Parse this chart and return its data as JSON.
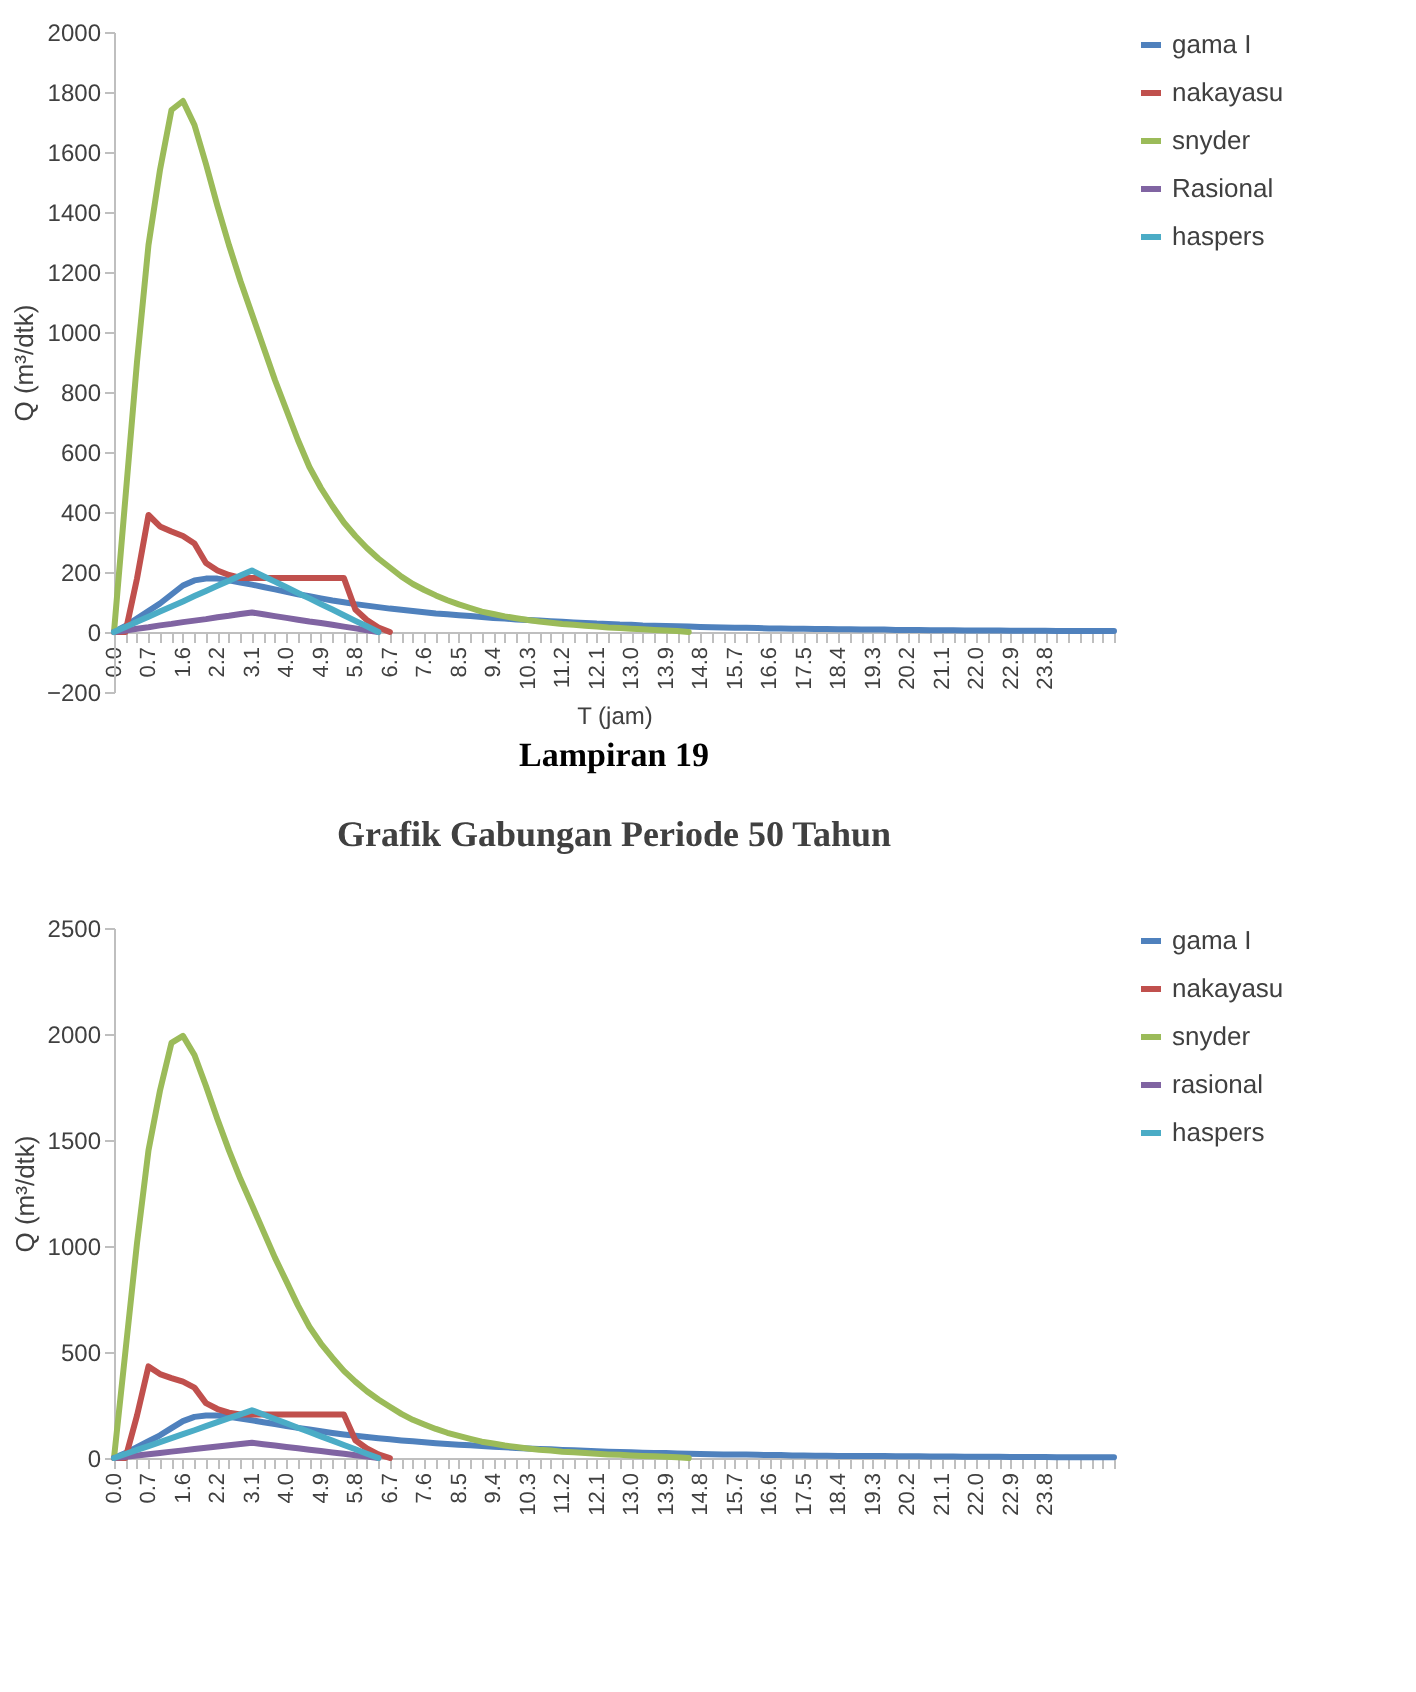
{
  "chart_data": [
    {
      "type": "line",
      "xlabel": "T (jam)",
      "ylabel": "Q (m³/dtk)",
      "legend": "right",
      "grid": false,
      "categories": [
        "0.0",
        null,
        null,
        "0.7",
        null,
        null,
        "1.6",
        null,
        null,
        "2.2",
        null,
        null,
        "3.1",
        null,
        null,
        "4.0",
        null,
        null,
        "4.9",
        null,
        null,
        "5.8",
        null,
        null,
        "6.7",
        null,
        null,
        "7.6",
        null,
        null,
        "8.5",
        null,
        null,
        "9.4",
        null,
        null,
        "10.3",
        null,
        null,
        "11.2",
        null,
        null,
        "12.1",
        null,
        null,
        "13.0",
        null,
        null,
        "13.9",
        null,
        null,
        "14.8",
        null,
        null,
        "15.7",
        null,
        null,
        "16.6",
        null,
        null,
        "17.5",
        null,
        null,
        "18.4",
        null,
        null,
        "19.3",
        null,
        null,
        "20.2",
        null,
        null,
        "21.1",
        null,
        null,
        "22.0",
        null,
        null,
        "22.9",
        null,
        null,
        "23.8",
        null,
        null,
        null,
        null,
        null,
        null
      ],
      "ylim": [
        -200,
        2000
      ],
      "yticks": [
        -200,
        0,
        200,
        400,
        600,
        800,
        1000,
        1200,
        1400,
        1600,
        1800,
        2000
      ],
      "series": [
        {
          "name": "gama I",
          "color": "#4f81bd",
          "values": [
            0,
            20,
            45,
            70,
            95,
            125,
            155,
            172,
            178,
            178,
            172,
            165,
            158,
            150,
            142,
            134,
            126,
            119,
            112,
            105,
            99,
            93,
            88,
            83,
            78,
            74,
            70,
            66,
            62,
            59,
            56,
            53,
            50,
            47,
            45,
            42,
            40,
            38,
            36,
            34,
            32,
            30,
            28,
            27,
            25,
            24,
            22,
            21,
            20,
            19,
            18,
            17,
            16,
            15,
            14,
            14,
            13,
            12,
            12,
            11,
            11,
            10,
            10,
            9,
            9,
            8,
            8,
            8,
            7,
            7,
            7,
            6,
            6,
            6,
            5,
            5,
            5,
            5,
            4,
            4,
            4,
            4,
            3,
            3,
            3,
            3,
            3,
            3
          ]
        },
        {
          "name": "nakayasu",
          "color": "#c0504d",
          "values": [
            0,
            0,
            178,
            390,
            352,
            335,
            320,
            295,
            230,
            205,
            190,
            180,
            180,
            180,
            180,
            180,
            180,
            180,
            180,
            180,
            180,
            75,
            40,
            15,
            0,
            null,
            null,
            null,
            null,
            null,
            null,
            null,
            null,
            null,
            null,
            null,
            null,
            null,
            null,
            null,
            null,
            null,
            null,
            null,
            null,
            null,
            null,
            null,
            null,
            null,
            null,
            null,
            null,
            null,
            null,
            null,
            null,
            null,
            null,
            null,
            null,
            null,
            null,
            null,
            null,
            null,
            null,
            null,
            null,
            null,
            null,
            null,
            null,
            null,
            null,
            null,
            null,
            null,
            null,
            null,
            null,
            null,
            null,
            null,
            null,
            null,
            null,
            null
          ]
        },
        {
          "name": "snyder",
          "color": "#9bbb59",
          "values": [
            0,
            450,
            900,
            1290,
            1540,
            1740,
            1770,
            1690,
            1560,
            1420,
            1290,
            1170,
            1060,
            950,
            840,
            740,
            640,
            550,
            480,
            420,
            365,
            320,
            280,
            245,
            215,
            185,
            160,
            140,
            122,
            106,
            92,
            80,
            68,
            60,
            52,
            46,
            40,
            35,
            31,
            27,
            24,
            21,
            18,
            15,
            13,
            11,
            9,
            7,
            5,
            3,
            0,
            null,
            null,
            null,
            null,
            null,
            null,
            null,
            null,
            null,
            null,
            null,
            null,
            null,
            null,
            null,
            null,
            null,
            null,
            null,
            null,
            null,
            null,
            null,
            null,
            null,
            null,
            null,
            null,
            null,
            null,
            null,
            null,
            null,
            null,
            null,
            null,
            null
          ]
        },
        {
          "name": "Rasional",
          "color": "#8064a2",
          "values": [
            0,
            5,
            11,
            16,
            22,
            27,
            33,
            38,
            43,
            49,
            54,
            60,
            65,
            59,
            53,
            47,
            41,
            35,
            30,
            24,
            18,
            12,
            6,
            0,
            null,
            null,
            null,
            null,
            null,
            null,
            null,
            null,
            null,
            null,
            null,
            null,
            null,
            null,
            null,
            null,
            null,
            null,
            null,
            null,
            null,
            null,
            null,
            null,
            null,
            null,
            null,
            null,
            null,
            null,
            null,
            null,
            null,
            null,
            null,
            null,
            null,
            null,
            null,
            null,
            null,
            null,
            null,
            null,
            null,
            null,
            null,
            null,
            null,
            null,
            null,
            null,
            null,
            null,
            null,
            null,
            null,
            null,
            null,
            null,
            null,
            null,
            null,
            null
          ]
        },
        {
          "name": "haspers",
          "color": "#4bacc6",
          "values": [
            0,
            17,
            34,
            51,
            68,
            85,
            102,
            120,
            137,
            154,
            171,
            188,
            205,
            186,
            168,
            149,
            130,
            112,
            93,
            75,
            56,
            37,
            19,
            0,
            null,
            null,
            null,
            null,
            null,
            null,
            null,
            null,
            null,
            null,
            null,
            null,
            null,
            null,
            null,
            null,
            null,
            null,
            null,
            null,
            null,
            null,
            null,
            null,
            null,
            null,
            null,
            null,
            null,
            null,
            null,
            null,
            null,
            null,
            null,
            null,
            null,
            null,
            null,
            null,
            null,
            null,
            null,
            null,
            null,
            null,
            null,
            null,
            null,
            null,
            null,
            null,
            null,
            null,
            null,
            null,
            null,
            null,
            null,
            null,
            null,
            null,
            null,
            null
          ]
        }
      ]
    },
    {
      "type": "line",
      "title": "Lampiran 19",
      "subtitle": "Grafik Gabungan Periode 50 Tahun",
      "ylabel": "Q (m³/dtk)",
      "legend": "right",
      "grid": false,
      "categories": [
        "0.0",
        null,
        null,
        "0.7",
        null,
        null,
        "1.6",
        null,
        null,
        "2.2",
        null,
        null,
        "3.1",
        null,
        null,
        "4.0",
        null,
        null,
        "4.9",
        null,
        null,
        "5.8",
        null,
        null,
        "6.7",
        null,
        null,
        "7.6",
        null,
        null,
        "8.5",
        null,
        null,
        "9.4",
        null,
        null,
        "10.3",
        null,
        null,
        "11.2",
        null,
        null,
        "12.1",
        null,
        null,
        "13.0",
        null,
        null,
        "13.9",
        null,
        null,
        "14.8",
        null,
        null,
        "15.7",
        null,
        null,
        "16.6",
        null,
        null,
        "17.5",
        null,
        null,
        "18.4",
        null,
        null,
        "19.3",
        null,
        null,
        "20.2",
        null,
        null,
        "21.1",
        null,
        null,
        "22.0",
        null,
        null,
        "22.9",
        null,
        null,
        "23.8",
        null,
        null,
        null,
        null,
        null,
        null
      ],
      "ylim": [
        0,
        2500
      ],
      "yticks": [
        0,
        500,
        1000,
        1500,
        2000,
        2500
      ],
      "series": [
        {
          "name": "gama I",
          "color": "#4f81bd",
          "values": [
            0,
            23,
            51,
            79,
            107,
            141,
            174,
            194,
            200,
            200,
            194,
            186,
            178,
            169,
            160,
            151,
            142,
            134,
            126,
            118,
            111,
            105,
            99,
            93,
            88,
            83,
            79,
            74,
            70,
            66,
            63,
            60,
            56,
            53,
            51,
            47,
            45,
            43,
            41,
            38,
            36,
            34,
            32,
            30,
            28,
            27,
            25,
            24,
            23,
            21,
            20,
            19,
            18,
            17,
            16,
            16,
            15,
            14,
            14,
            12,
            12,
            11,
            11,
            10,
            10,
            9,
            9,
            9,
            8,
            8,
            8,
            7,
            7,
            7,
            6,
            6,
            6,
            6,
            5,
            5,
            5,
            5,
            3,
            3,
            3,
            3,
            3,
            3
          ]
        },
        {
          "name": "nakayasu",
          "color": "#c0504d",
          "values": [
            0,
            0,
            200,
            432,
            396,
            377,
            360,
            332,
            259,
            231,
            214,
            205,
            205,
            205,
            205,
            205,
            205,
            205,
            205,
            205,
            205,
            84,
            45,
            17,
            0,
            null,
            null,
            null,
            null,
            null,
            null,
            null,
            null,
            null,
            null,
            null,
            null,
            null,
            null,
            null,
            null,
            null,
            null,
            null,
            null,
            null,
            null,
            null,
            null,
            null,
            null,
            null,
            null,
            null,
            null,
            null,
            null,
            null,
            null,
            null,
            null,
            null,
            null,
            null,
            null,
            null,
            null,
            null,
            null,
            null,
            null,
            null,
            null,
            null,
            null,
            null,
            null,
            null,
            null,
            null,
            null,
            null,
            null,
            null,
            null,
            null,
            null,
            null
          ]
        },
        {
          "name": "snyder",
          "color": "#9bbb59",
          "values": [
            0,
            506,
            1013,
            1451,
            1733,
            1958,
            1991,
            1901,
            1755,
            1598,
            1451,
            1316,
            1193,
            1069,
            945,
            833,
            720,
            619,
            540,
            473,
            411,
            360,
            315,
            276,
            242,
            208,
            180,
            158,
            137,
            119,
            104,
            90,
            77,
            68,
            59,
            52,
            45,
            39,
            35,
            30,
            27,
            24,
            20,
            17,
            15,
            12,
            10,
            8,
            6,
            3,
            0,
            null,
            null,
            null,
            null,
            null,
            null,
            null,
            null,
            null,
            null,
            null,
            null,
            null,
            null,
            null,
            null,
            null,
            null,
            null,
            null,
            null,
            null,
            null,
            null,
            null,
            null,
            null,
            null,
            null,
            null,
            null,
            null,
            null,
            null,
            null,
            null,
            null
          ]
        },
        {
          "name": "rasional",
          "color": "#8064a2",
          "values": [
            0,
            6,
            12,
            18,
            24,
            30,
            36,
            42,
            48,
            54,
            60,
            66,
            72,
            65,
            59,
            52,
            46,
            39,
            33,
            26,
            20,
            13,
            7,
            0,
            null,
            null,
            null,
            null,
            null,
            null,
            null,
            null,
            null,
            null,
            null,
            null,
            null,
            null,
            null,
            null,
            null,
            null,
            null,
            null,
            null,
            null,
            null,
            null,
            null,
            null,
            null,
            null,
            null,
            null,
            null,
            null,
            null,
            null,
            null,
            null,
            null,
            null,
            null,
            null,
            null,
            null,
            null,
            null,
            null,
            null,
            null,
            null,
            null,
            null,
            null,
            null,
            null,
            null,
            null,
            null,
            null,
            null,
            null,
            null,
            null,
            null,
            null,
            null
          ]
        },
        {
          "name": "haspers",
          "color": "#4bacc6",
          "values": [
            0,
            19,
            38,
            56,
            75,
            94,
            113,
            131,
            150,
            169,
            188,
            206,
            225,
            205,
            184,
            164,
            143,
            123,
            102,
            82,
            61,
            41,
            20,
            0,
            null,
            null,
            null,
            null,
            null,
            null,
            null,
            null,
            null,
            null,
            null,
            null,
            null,
            null,
            null,
            null,
            null,
            null,
            null,
            null,
            null,
            null,
            null,
            null,
            null,
            null,
            null,
            null,
            null,
            null,
            null,
            null,
            null,
            null,
            null,
            null,
            null,
            null,
            null,
            null,
            null,
            null,
            null,
            null,
            null,
            null,
            null,
            null,
            null,
            null,
            null,
            null,
            null,
            null,
            null,
            null,
            null,
            null,
            null,
            null,
            null,
            null,
            null,
            null
          ]
        }
      ]
    }
  ]
}
